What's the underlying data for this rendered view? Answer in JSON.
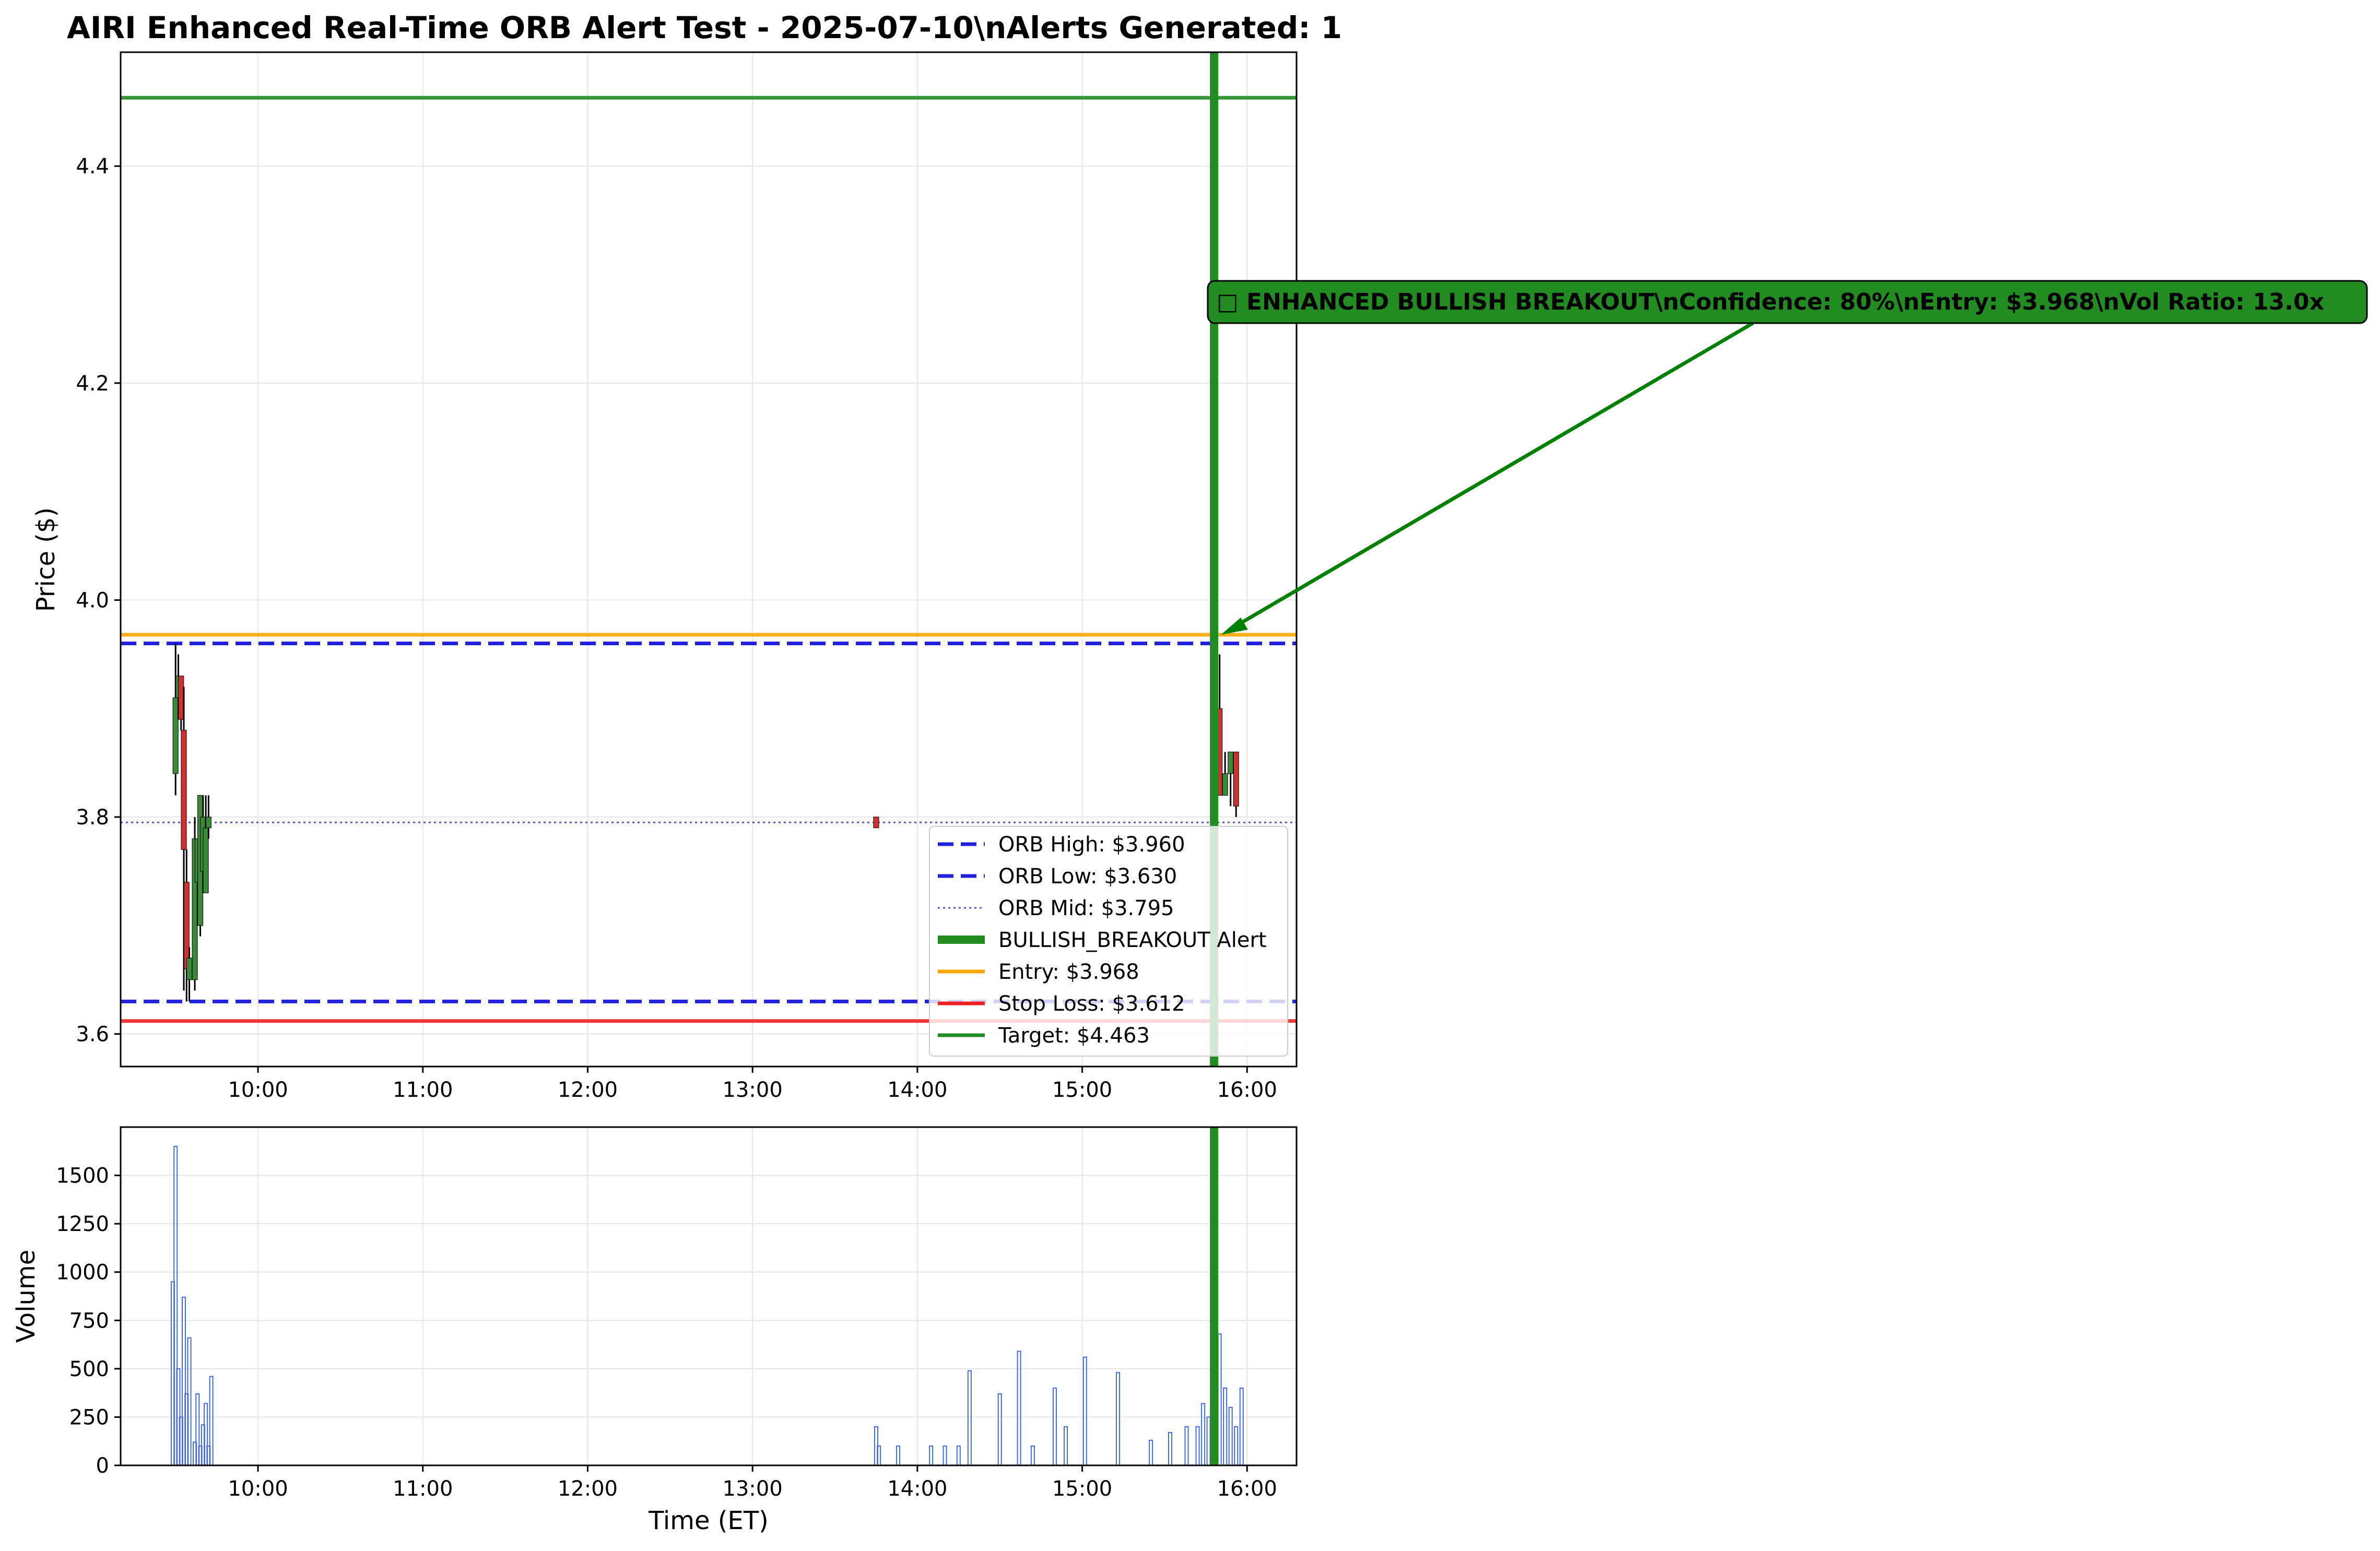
{
  "chart_data": {
    "type": "candlestick",
    "title": "AIRI Enhanced Real-Time ORB Alert Test - 2025-07-10\\nAlerts Generated: 1",
    "price_panel": {
      "ylabel": "Price ($)",
      "ylim": [
        3.57,
        4.505
      ],
      "yticks": [
        3.6,
        3.8,
        4.0,
        4.2,
        4.4
      ],
      "ytick_labels": [
        "3.6",
        "3.8",
        "4.0",
        "4.2",
        "4.4"
      ],
      "candles": [
        {
          "t": "09:30",
          "o": 3.84,
          "h": 3.96,
          "l": 3.82,
          "c": 3.91
        },
        {
          "t": "09:31",
          "o": 3.91,
          "h": 3.95,
          "l": 3.89,
          "c": 3.93
        },
        {
          "t": "09:32",
          "o": 3.93,
          "h": 3.93,
          "l": 3.88,
          "c": 3.89
        },
        {
          "t": "09:33",
          "o": 3.88,
          "h": 3.92,
          "l": 3.64,
          "c": 3.77
        },
        {
          "t": "09:34",
          "o": 3.74,
          "h": 3.77,
          "l": 3.63,
          "c": 3.66
        },
        {
          "t": "09:35",
          "o": 3.65,
          "h": 3.68,
          "l": 3.63,
          "c": 3.67
        },
        {
          "t": "09:37",
          "o": 3.65,
          "h": 3.8,
          "l": 3.64,
          "c": 3.78
        },
        {
          "t": "09:38",
          "o": 3.74,
          "h": 3.78,
          "l": 3.7,
          "c": 3.78
        },
        {
          "t": "09:39",
          "o": 3.7,
          "h": 3.82,
          "l": 3.69,
          "c": 3.82
        },
        {
          "t": "09:40",
          "o": 3.75,
          "h": 3.82,
          "l": 3.73,
          "c": 3.8
        },
        {
          "t": "09:41",
          "o": 3.73,
          "h": 3.82,
          "l": 3.73,
          "c": 3.79
        },
        {
          "t": "09:42",
          "o": 3.79,
          "h": 3.82,
          "l": 3.78,
          "c": 3.8
        },
        {
          "t": "13:45",
          "o": 3.8,
          "h": 3.8,
          "l": 3.79,
          "c": 3.79
        },
        {
          "t": "15:50",
          "o": 3.9,
          "h": 3.95,
          "l": 3.82,
          "c": 3.82
        },
        {
          "t": "15:52",
          "o": 3.82,
          "h": 3.86,
          "l": 3.82,
          "c": 3.84
        },
        {
          "t": "15:54",
          "o": 3.84,
          "h": 3.86,
          "l": 3.81,
          "c": 3.86
        },
        {
          "t": "15:56",
          "o": 3.86,
          "h": 3.86,
          "l": 3.8,
          "c": 3.81
        }
      ],
      "lines": [
        {
          "name": "ORB High: $3.960",
          "value": 3.96,
          "color": "#2222dd",
          "style": "dashed"
        },
        {
          "name": "ORB Low: $3.630",
          "value": 3.63,
          "color": "#2222dd",
          "style": "dashed"
        },
        {
          "name": "ORB Mid: $3.795",
          "value": 3.795,
          "color": "#5555cc",
          "style": "dotted"
        },
        {
          "name": "Entry: $3.968",
          "value": 3.968,
          "color": "#ffa500",
          "style": "solid"
        },
        {
          "name": "Stop Loss: $3.612",
          "value": 3.612,
          "color": "#ee2222",
          "style": "solid"
        },
        {
          "name": "Target: $4.463",
          "value": 4.463,
          "color": "#228b22",
          "style": "solid"
        }
      ],
      "alert": {
        "name": "BULLISH_BREAKOUT Alert",
        "time": "15:48",
        "price": 3.968,
        "color": "#228b22"
      },
      "annotation": "□ ENHANCED BULLISH BREAKOUT\\nConfidence: 80%\\nEntry: $3.968\\nVol Ratio: 13.0x",
      "legend": [
        "ORB High: $3.960",
        "ORB Low: $3.630",
        "ORB Mid: $3.795",
        "BULLISH_BREAKOUT Alert",
        "Entry: $3.968",
        "Stop Loss: $3.612",
        "Target: $4.463"
      ],
      "legend_position": "lower-right"
    },
    "volume_panel": {
      "ylabel": "Volume",
      "ylim": [
        0,
        1750
      ],
      "yticks": [
        0,
        250,
        500,
        750,
        1000,
        1250,
        1500
      ],
      "ytick_labels": [
        "0",
        "250",
        "500",
        "750",
        "1000",
        "1250",
        "1500"
      ],
      "bars": [
        {
          "t": "09:29",
          "v": 950
        },
        {
          "t": "09:30",
          "v": 1650
        },
        {
          "t": "09:31",
          "v": 500
        },
        {
          "t": "09:32",
          "v": 250
        },
        {
          "t": "09:33",
          "v": 870
        },
        {
          "t": "09:34",
          "v": 370
        },
        {
          "t": "09:35",
          "v": 660
        },
        {
          "t": "09:37",
          "v": 120
        },
        {
          "t": "09:38",
          "v": 370
        },
        {
          "t": "09:39",
          "v": 100
        },
        {
          "t": "09:40",
          "v": 210
        },
        {
          "t": "09:41",
          "v": 320
        },
        {
          "t": "09:42",
          "v": 100
        },
        {
          "t": "09:43",
          "v": 460
        },
        {
          "t": "13:45",
          "v": 200
        },
        {
          "t": "13:46",
          "v": 100
        },
        {
          "t": "13:53",
          "v": 100
        },
        {
          "t": "14:05",
          "v": 100
        },
        {
          "t": "14:10",
          "v": 100
        },
        {
          "t": "14:15",
          "v": 100
        },
        {
          "t": "14:19",
          "v": 490
        },
        {
          "t": "14:30",
          "v": 370
        },
        {
          "t": "14:37",
          "v": 590
        },
        {
          "t": "14:42",
          "v": 100
        },
        {
          "t": "14:50",
          "v": 400
        },
        {
          "t": "14:54",
          "v": 200
        },
        {
          "t": "15:01",
          "v": 560
        },
        {
          "t": "15:13",
          "v": 480
        },
        {
          "t": "15:25",
          "v": 130
        },
        {
          "t": "15:32",
          "v": 170
        },
        {
          "t": "15:38",
          "v": 200
        },
        {
          "t": "15:42",
          "v": 200
        },
        {
          "t": "15:44",
          "v": 320
        },
        {
          "t": "15:46",
          "v": 250
        },
        {
          "t": "15:48",
          "v": 820
        },
        {
          "t": "15:50",
          "v": 680
        },
        {
          "t": "15:52",
          "v": 400
        },
        {
          "t": "15:54",
          "v": 300
        },
        {
          "t": "15:56",
          "v": 200
        },
        {
          "t": "15:58",
          "v": 400
        }
      ],
      "bar_color": "#4169e1"
    },
    "xlabel": "Time (ET)",
    "xlim": [
      "09:10",
      "16:18"
    ],
    "xticks": [
      "10:00",
      "11:00",
      "12:00",
      "13:00",
      "14:00",
      "15:00",
      "16:00"
    ],
    "grid": true
  }
}
